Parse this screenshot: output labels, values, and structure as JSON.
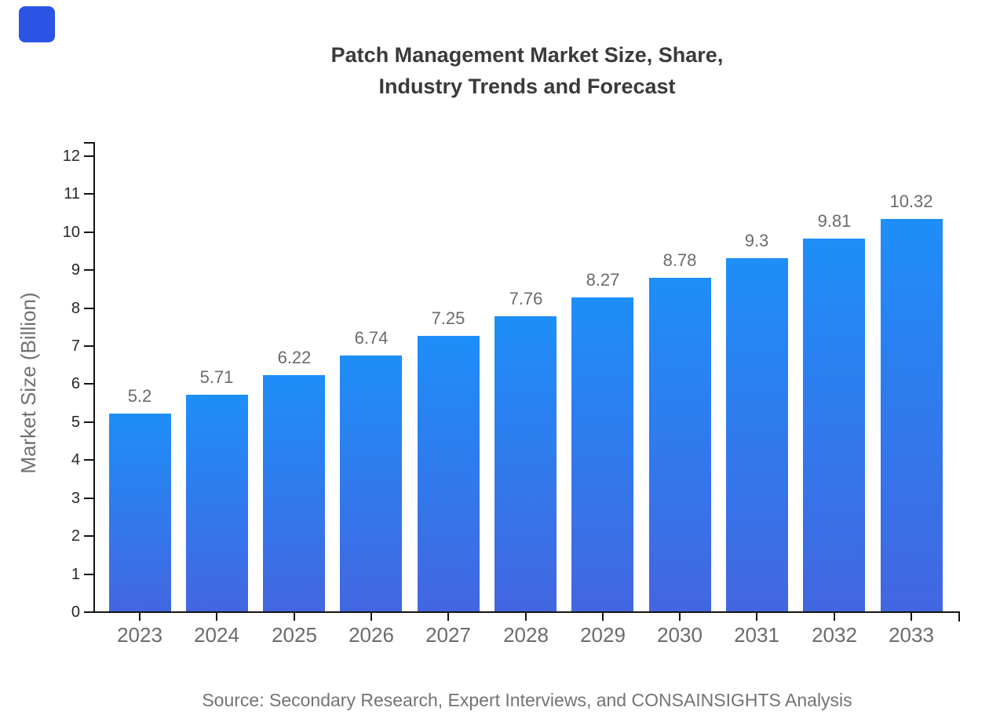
{
  "logo": {
    "color": "#2B53E4"
  },
  "title": {
    "line1": "Patch Management Market Size, Share,",
    "line2": "Industry Trends and Forecast"
  },
  "source": {
    "text": "Source: Secondary Research, Expert Interviews, and CONSAINSIGHTS Analysis"
  },
  "chart_data": {
    "type": "bar",
    "title": "Patch Management Market Size, Share, Industry Trends and Forecast",
    "categories": [
      "2023",
      "2024",
      "2025",
      "2026",
      "2027",
      "2028",
      "2029",
      "2030",
      "2031",
      "2032",
      "2033"
    ],
    "values": [
      5.2,
      5.71,
      6.22,
      6.74,
      7.25,
      7.76,
      8.27,
      8.78,
      9.3,
      9.81,
      10.32
    ],
    "data_labels": [
      "5.2",
      "5.71",
      "6.22",
      "6.74",
      "7.25",
      "7.76",
      "8.27",
      "8.78",
      "9.3",
      "9.81",
      "10.32"
    ],
    "xlabel": "",
    "ylabel": "Market Size (Billion)",
    "ylim": [
      0,
      12
    ],
    "ytick_step": 1,
    "yticks": [
      0,
      1,
      2,
      3,
      4,
      5,
      6,
      7,
      8,
      9,
      10,
      11,
      12
    ],
    "grid": false,
    "legend": "none",
    "bar_gradient_top": "#1E8EF9",
    "bar_gradient_bottom": "#4366E1",
    "axis_color": "#141414",
    "y_tick_label_color": "#262626",
    "x_tick_label_color": "#6b6b6b",
    "data_label_color": "#6b6b6b",
    "title_color": "#3a3a3a",
    "source_color": "#737373"
  }
}
